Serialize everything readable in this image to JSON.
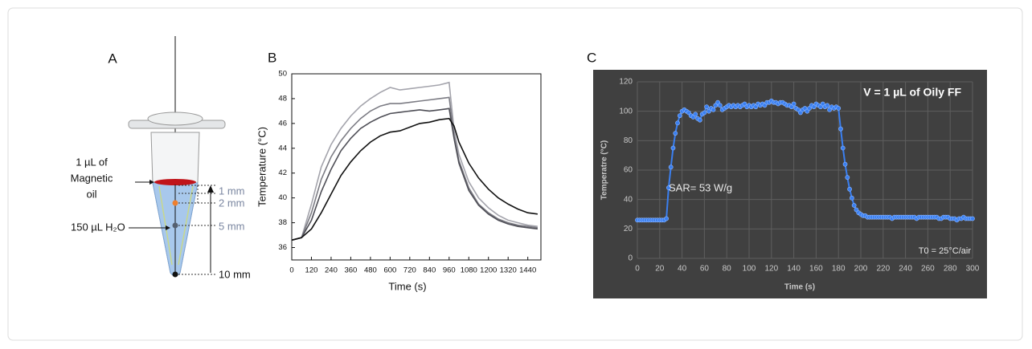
{
  "diagram": {
    "panel": "A",
    "oil_label": [
      "1 µL of",
      "Magnetic",
      "oil"
    ],
    "water_label": "150 µL H₂O",
    "distances": [
      "1 mm",
      "2 mm",
      "5 mm",
      "10 mm"
    ]
  },
  "chart_data": [
    {
      "type": "line",
      "panel": "B",
      "xlabel": "Time (s)",
      "ylabel": "Temperature (°C)",
      "x": [
        0,
        60,
        120,
        180,
        240,
        300,
        360,
        420,
        480,
        540,
        600,
        660,
        720,
        780,
        840,
        900,
        960,
        990,
        1020,
        1080,
        1140,
        1200,
        1260,
        1320,
        1380,
        1440,
        1500
      ],
      "series": [
        {
          "color": "#a4a4ac",
          "values": [
            36.6,
            36.8,
            39.5,
            42.5,
            44.3,
            45.6,
            46.6,
            47.4,
            48.0,
            48.5,
            48.9,
            48.7,
            48.8,
            48.9,
            49.0,
            49.1,
            49.3,
            45.5,
            43.5,
            41.3,
            40.0,
            39.2,
            38.6,
            38.2,
            38.0,
            37.8,
            37.7
          ]
        },
        {
          "color": "#7c7c84",
          "values": [
            36.6,
            36.8,
            38.8,
            41.5,
            43.3,
            44.6,
            45.6,
            46.4,
            47.0,
            47.4,
            47.6,
            47.6,
            47.7,
            47.8,
            47.9,
            48.0,
            48.1,
            45.0,
            43.0,
            40.8,
            39.5,
            38.8,
            38.3,
            38.0,
            37.8,
            37.7,
            37.6
          ]
        },
        {
          "color": "#4e4e56",
          "values": [
            36.6,
            36.8,
            38.2,
            40.5,
            42.3,
            43.8,
            44.8,
            45.6,
            46.1,
            46.5,
            46.8,
            46.9,
            47.0,
            47.1,
            47.0,
            47.1,
            47.2,
            44.8,
            42.8,
            40.6,
            39.4,
            38.7,
            38.2,
            37.9,
            37.7,
            37.6,
            37.5
          ]
        },
        {
          "color": "#111111",
          "values": [
            36.6,
            36.8,
            37.5,
            38.8,
            40.3,
            41.8,
            42.9,
            43.8,
            44.5,
            45.0,
            45.3,
            45.4,
            45.7,
            46.0,
            46.1,
            46.3,
            46.4,
            45.8,
            44.5,
            42.8,
            41.6,
            40.7,
            40.0,
            39.5,
            39.1,
            38.8,
            38.7
          ]
        }
      ],
      "xlim": [
        0,
        1520
      ],
      "xticks": [
        0,
        120,
        240,
        360,
        480,
        600,
        720,
        840,
        960,
        1080,
        1200,
        1320,
        1440
      ],
      "ylim": [
        35,
        50
      ],
      "yticks": [
        36,
        38,
        40,
        42,
        44,
        46,
        48,
        50
      ],
      "grid": false,
      "frame": true
    },
    {
      "type": "line",
      "panel": "C",
      "title": "V = 1 µL of Oily FF",
      "xlabel": "Time (s)",
      "ylabel": "Temperatre (°C)",
      "annotations": [
        "SAR= 53 W/g",
        "T0 = 25°C/air"
      ],
      "x": [
        0,
        2,
        4,
        6,
        8,
        10,
        12,
        14,
        16,
        18,
        20,
        22,
        24,
        26,
        28,
        30,
        32,
        34,
        36,
        38,
        40,
        42,
        44,
        46,
        48,
        50,
        52,
        54,
        56,
        58,
        60,
        62,
        64,
        66,
        68,
        70,
        72,
        74,
        76,
        78,
        80,
        82,
        84,
        86,
        88,
        90,
        92,
        94,
        96,
        98,
        100,
        102,
        104,
        106,
        108,
        110,
        112,
        114,
        116,
        118,
        120,
        122,
        124,
        126,
        128,
        130,
        132,
        134,
        136,
        138,
        140,
        142,
        144,
        146,
        148,
        150,
        152,
        154,
        156,
        158,
        160,
        162,
        164,
        166,
        168,
        170,
        172,
        174,
        176,
        178,
        180,
        182,
        184,
        186,
        188,
        190,
        192,
        194,
        196,
        198,
        200,
        202,
        204,
        206,
        208,
        210,
        212,
        214,
        216,
        218,
        220,
        222,
        224,
        226,
        228,
        230,
        232,
        234,
        236,
        238,
        240,
        242,
        244,
        246,
        248,
        250,
        252,
        254,
        256,
        258,
        260,
        262,
        264,
        266,
        268,
        270,
        272,
        274,
        276,
        278,
        280,
        282,
        284,
        286,
        288,
        290,
        292,
        294,
        296,
        298,
        300
      ],
      "series": [
        {
          "color": "#3a7ff0",
          "values": [
            26,
            26,
            26,
            26,
            26,
            26,
            26,
            26,
            26,
            26,
            26,
            26,
            26,
            27,
            48,
            62,
            75,
            85,
            92,
            97,
            100,
            101,
            100,
            99,
            97,
            96,
            98,
            95,
            94,
            98,
            99,
            103,
            100,
            102,
            101,
            104,
            106,
            104,
            101,
            102,
            103,
            104,
            103,
            104,
            103,
            104,
            103,
            104,
            105,
            103,
            104,
            103,
            104,
            103,
            105,
            104,
            105,
            104,
            106,
            106,
            107,
            106,
            106,
            105,
            106,
            106,
            105,
            104,
            104,
            103,
            105,
            102,
            101,
            99,
            101,
            102,
            100,
            102,
            104,
            103,
            105,
            104,
            103,
            105,
            103,
            104,
            101,
            103,
            102,
            103,
            102,
            88,
            75,
            64,
            55,
            47,
            41,
            36,
            33,
            31,
            30,
            29,
            29,
            28,
            28,
            28,
            28,
            28,
            28,
            28,
            28,
            28,
            28,
            28,
            27,
            28,
            28,
            28,
            28,
            28,
            28,
            28,
            28,
            28,
            28,
            27,
            28,
            28,
            28,
            28,
            28,
            28,
            28,
            28,
            28,
            27,
            27,
            28,
            28,
            28,
            27,
            27,
            27,
            26,
            27,
            27,
            28,
            27,
            27,
            27,
            27
          ]
        }
      ],
      "xlim": [
        0,
        300
      ],
      "xticks": [
        0,
        20,
        40,
        60,
        80,
        100,
        120,
        140,
        160,
        180,
        200,
        220,
        240,
        260,
        280,
        300
      ],
      "ylim": [
        0,
        120
      ],
      "yticks": [
        0,
        20,
        40,
        60,
        80,
        100,
        120
      ],
      "grid": true,
      "grid_color": "#5e5e5e",
      "markers": true,
      "background": "#404040"
    }
  ]
}
